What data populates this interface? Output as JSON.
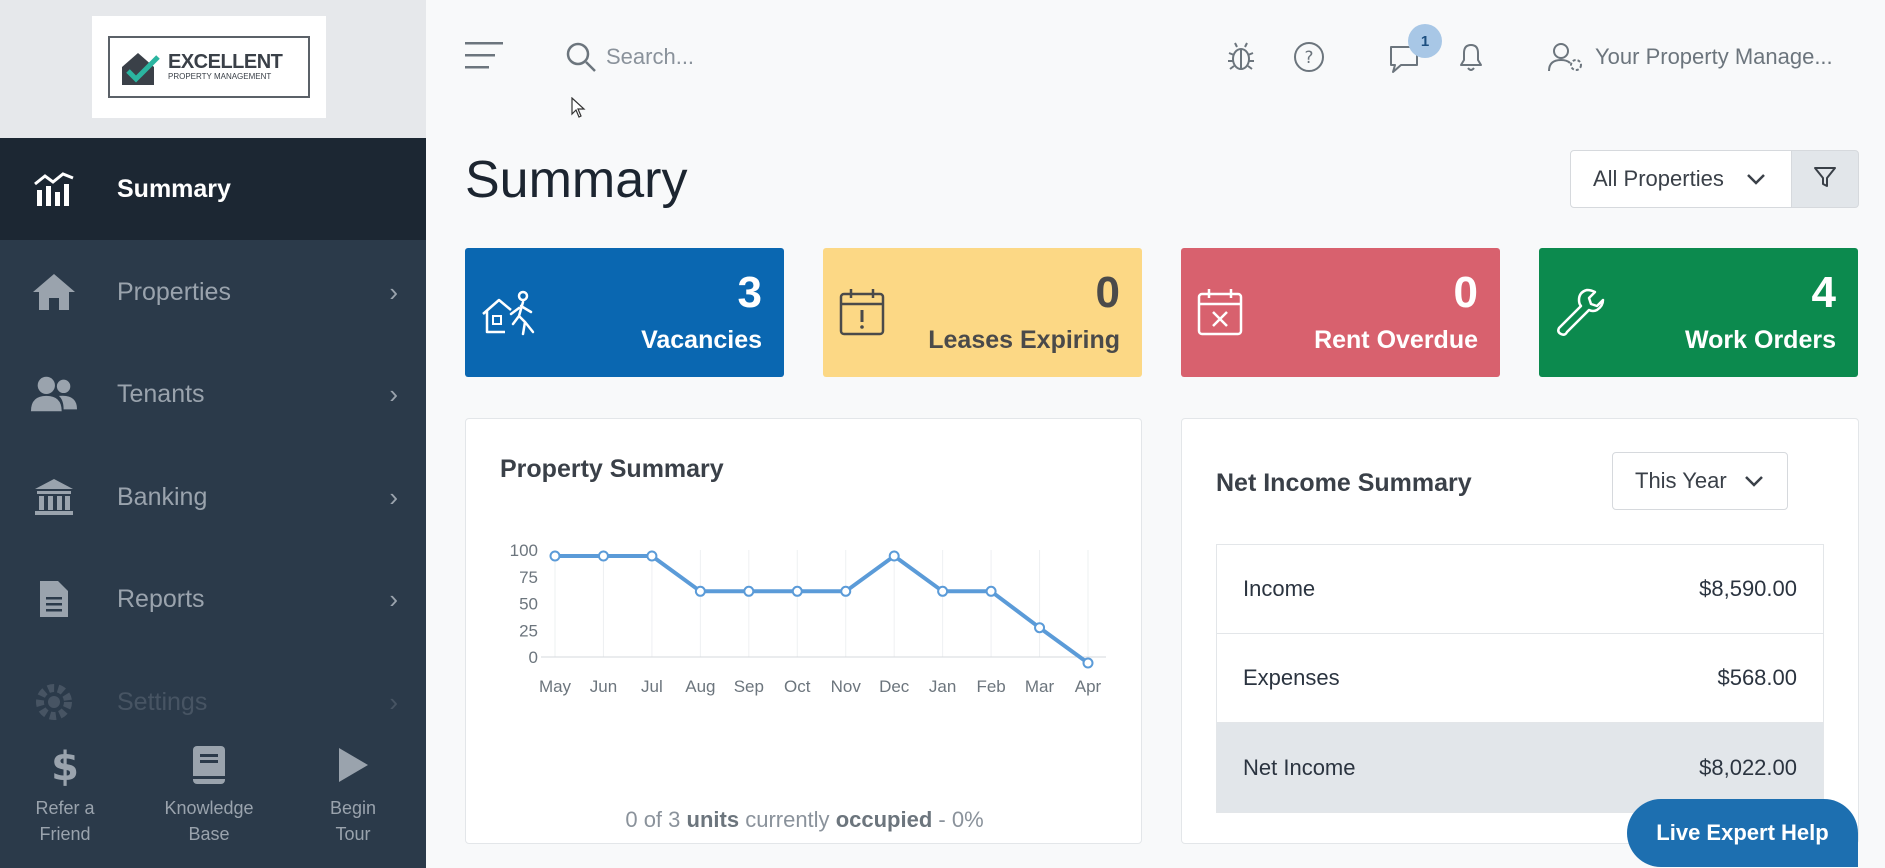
{
  "brand": {
    "name": "EXCELLENT",
    "subtitle": "PROPERTY MANAGEMENT"
  },
  "sidebar": {
    "items": [
      {
        "label": "Summary",
        "icon": "chart-icon",
        "active": true
      },
      {
        "label": "Properties",
        "icon": "home-icon"
      },
      {
        "label": "Tenants",
        "icon": "users-icon"
      },
      {
        "label": "Banking",
        "icon": "bank-icon"
      },
      {
        "label": "Reports",
        "icon": "report-icon"
      },
      {
        "label": "Settings",
        "icon": "gear-icon"
      }
    ],
    "chevron": "›",
    "bottom": [
      {
        "line1": "Refer a",
        "line2": "Friend",
        "icon": "dollar-icon"
      },
      {
        "line1": "Knowledge",
        "line2": "Base",
        "icon": "book-icon"
      },
      {
        "line1": "Begin",
        "line2": "Tour",
        "icon": "play-icon"
      }
    ]
  },
  "header": {
    "search_placeholder": "Search...",
    "chat_badge": "1",
    "user_name": "Your Property Manage..."
  },
  "page": {
    "title": "Summary",
    "property_filter": "All Properties"
  },
  "stats": [
    {
      "value": "3",
      "label": "Vacancies"
    },
    {
      "value": "0",
      "label": "Leases Expiring"
    },
    {
      "value": "0",
      "label": "Rent Overdue"
    },
    {
      "value": "4",
      "label": "Work Orders"
    }
  ],
  "property_summary": {
    "title": "Property Summary",
    "occupancy": {
      "prefix": "0 of 3",
      "units": "units",
      "middle": "currently",
      "occupied": "occupied",
      "suffix": "- 0%"
    }
  },
  "chart_data": {
    "type": "line",
    "categories": [
      "May",
      "Jun",
      "Jul",
      "Aug",
      "Sep",
      "Oct",
      "Nov",
      "Dec",
      "Jan",
      "Feb",
      "Mar",
      "Apr"
    ],
    "series": [
      {
        "values": [
          100,
          100,
          100,
          67,
          67,
          67,
          67,
          100,
          67,
          67,
          33,
          0
        ]
      }
    ],
    "yticks": [
      "0",
      "25",
      "50",
      "75",
      "100"
    ],
    "ylim": [
      0,
      100
    ],
    "grid": true,
    "color": "#5b9bd8"
  },
  "net_income": {
    "title": "Net Income Summary",
    "period": "This Year",
    "rows": [
      {
        "label": "Income",
        "value": "$8,590.00"
      },
      {
        "label": "Expenses",
        "value": "$568.00"
      },
      {
        "label": "Net Income",
        "value": "$8,022.00"
      }
    ]
  },
  "live_help": "Live Expert Help"
}
